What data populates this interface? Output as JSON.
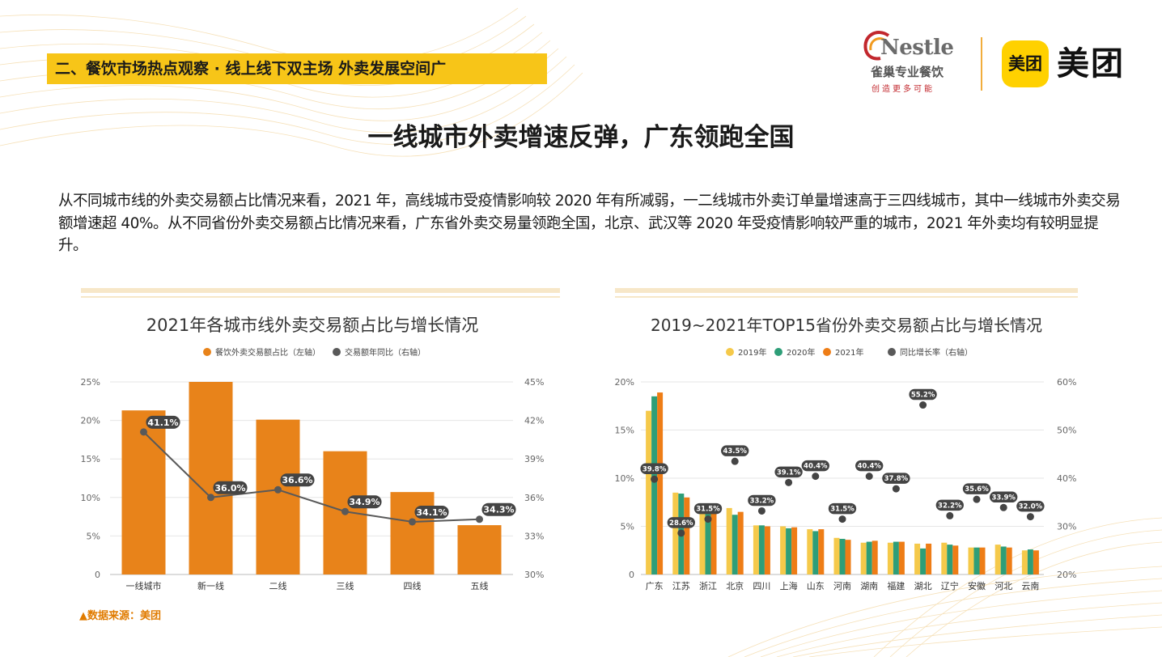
{
  "header": {
    "section_tag": "二、餐饮市场热点观察 · 线上线下双主场 外卖发展空间广",
    "nestle_word": "Nestle",
    "nestle_cn": "雀巢专业餐饮",
    "nestle_slogan": "创造更多可能",
    "meituan_badge": "美团",
    "meituan_word": "美团"
  },
  "main_title": "一线城市外卖增速反弹，广东领跑全国",
  "intro": "从不同城市线的外卖交易额占比情况来看，2021 年，高线城市受疫情影响较 2020 年有所减弱，一二线城市外卖订单量增速高于三四线城市，其中一线城市外卖交易额增速超 40%。从不同省份外卖交易额占比情况来看，广东省外卖交易量领跑全国，北京、武汉等 2020 年受疫情影响较严重的城市，2021 年外卖均有较明显提升。",
  "source": "▲数据来源：美团",
  "colors": {
    "orange": "#e8831a",
    "yellow": "#f5c94a",
    "green": "#2e9e78",
    "dark_orange": "#ee7d16",
    "gray": "#595959",
    "tag": "#f7c518"
  },
  "chart_data": [
    {
      "type": "bar",
      "title": "2021年各城市线外卖交易额占比与增长情况",
      "categories": [
        "一线城市",
        "新一线",
        "二线",
        "三线",
        "四线",
        "五线"
      ],
      "series": [
        {
          "name": "餐饮外卖交易额占比（左轴）",
          "type": "bar",
          "axis": "left",
          "values": [
            21.3,
            25.0,
            20.1,
            16.0,
            10.7,
            6.4
          ]
        },
        {
          "name": "交易额年同比（右轴）",
          "type": "line",
          "axis": "right",
          "values": [
            41.1,
            36.0,
            36.6,
            34.9,
            34.1,
            34.3
          ],
          "labels": [
            "41.1%",
            "36.0%",
            "36.6%",
            "34.9%",
            "34.1%",
            "34.3%"
          ]
        }
      ],
      "y_left": {
        "range": [
          0,
          25
        ],
        "ticks": [
          "0",
          "5%",
          "10%",
          "15%",
          "20%",
          "25%"
        ]
      },
      "y_right": {
        "range": [
          30,
          45
        ],
        "ticks": [
          "30%",
          "33%",
          "36%",
          "39%",
          "42%",
          "45%"
        ]
      },
      "grid": true,
      "legend": "top"
    },
    {
      "type": "bar",
      "title": "2019~2021年TOP15省份外卖交易额占比与增长情况",
      "categories": [
        "广东",
        "江苏",
        "浙江",
        "北京",
        "四川",
        "上海",
        "山东",
        "河南",
        "湖南",
        "福建",
        "湖北",
        "辽宁",
        "安徽",
        "河北",
        "云南"
      ],
      "series": [
        {
          "name": "2019年",
          "type": "bar",
          "axis": "left",
          "values": [
            17.0,
            8.5,
            6.6,
            6.9,
            5.1,
            5.0,
            4.7,
            3.8,
            3.3,
            3.3,
            3.2,
            3.3,
            2.8,
            3.1,
            2.5
          ]
        },
        {
          "name": "2020年",
          "type": "bar",
          "axis": "left",
          "values": [
            18.5,
            8.4,
            7.2,
            6.2,
            5.1,
            4.8,
            4.5,
            3.7,
            3.4,
            3.4,
            2.7,
            3.1,
            2.8,
            2.9,
            2.6
          ]
        },
        {
          "name": "2021年",
          "type": "bar",
          "axis": "left",
          "values": [
            18.9,
            8.0,
            6.9,
            6.5,
            5.0,
            4.9,
            4.7,
            3.6,
            3.5,
            3.4,
            3.2,
            3.0,
            2.8,
            2.8,
            2.5
          ]
        },
        {
          "name": "同比增长率（右轴）",
          "type": "scatter",
          "axis": "right",
          "values": [
            39.8,
            28.6,
            31.5,
            43.5,
            33.2,
            39.1,
            40.4,
            31.5,
            40.4,
            37.8,
            55.2,
            32.2,
            35.6,
            33.9,
            32.0
          ],
          "labels": [
            "39.8%",
            "28.6%",
            "31.5%",
            "43.5%",
            "33.2%",
            "39.1%",
            "40.4%",
            "31.5%",
            "40.4%",
            "37.8%",
            "55.2%",
            "32.2%",
            "35.6%",
            "33.9%",
            "32.0%"
          ]
        }
      ],
      "y_left": {
        "range": [
          0,
          20
        ],
        "ticks": [
          "0",
          "5%",
          "10%",
          "15%",
          "20%"
        ]
      },
      "y_right": {
        "range": [
          20,
          60
        ],
        "ticks": [
          "20%",
          "30%",
          "40%",
          "50%",
          "60%"
        ]
      },
      "grid": true,
      "legend": "top"
    }
  ]
}
